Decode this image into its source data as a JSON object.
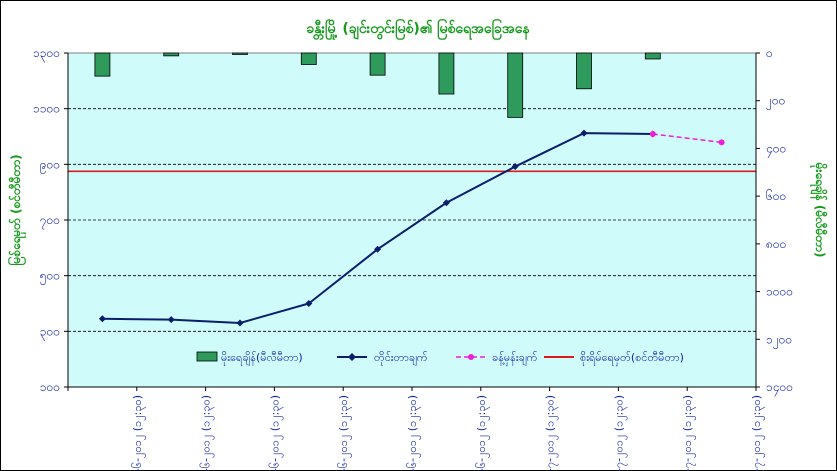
{
  "chart_data": {
    "type": "bar+line",
    "title": "ခန္တီးမြို့ (ချင်းတွင်းမြစ်)၏ မြစ်ရေအခြေအနေ",
    "ylabel_left": "မြစ်ရေမှတ် (စင်တီမီတာ)",
    "ylabel_right": "မိုးရေချိန် (မီလီမီတာ)",
    "categories": [
      "၂၅-၆-၂၀၁၂ (၁၂:၃၀)",
      "၂၆-၆-၂၀၁၂ (၁၂:၃၀)",
      "၂၇-၆-၂၀၁၂ (၁၂:၃၀)",
      "၂၈-၆-၂၀၁၂ (၁၂:၃၀)",
      "၂၉-၆-၂၀၁၂ (၁၂:၃၀)",
      "၃၀-၆-၂၀၁၂ (၁၂:၃၀)",
      "၁-၇-၂၀၁၂ (၁၂:၃၀)",
      "၂-၇-၂၀၁၂ (၁၂:၃၀)",
      "၃-၇-၂၀၁၂ (၁၂:၃၀)",
      "၄-၇-၂၀၁၂ (၁၂:၃၀)"
    ],
    "left_axis": {
      "ylim": [
        100,
        1300
      ],
      "ticks": [
        100,
        300,
        500,
        700,
        900,
        1100,
        1300
      ],
      "tick_labels": [
        "၁၀၀",
        "၃၀၀",
        "၅၀၀",
        "၇၀၀",
        "၉၀၀",
        "၁၁၀၀",
        "၁၃၀၀"
      ]
    },
    "right_axis": {
      "ylim": [
        0,
        1400
      ],
      "inverted": true,
      "ticks": [
        0,
        200,
        400,
        600,
        800,
        1000,
        1200,
        1400
      ],
      "tick_labels": [
        "၀",
        "၂၀၀",
        "၄၀၀",
        "၆၀၀",
        "၈၀၀",
        "၁၀၀၀",
        "၁၂၀၀",
        "၁၄၀၀"
      ]
    },
    "series": [
      {
        "name": "မိုးရေချိန်(မီလီမီတာ)",
        "type": "bar",
        "axis": "right",
        "color": "#2e9a5c",
        "values": [
          97,
          12,
          6,
          48,
          93,
          172,
          270,
          150,
          25,
          null
        ]
      },
      {
        "name": "တိုင်းတာချက်",
        "type": "line",
        "axis": "left",
        "color": "#0b1d6b",
        "values": [
          345,
          342,
          330,
          400,
          595,
          762,
          892,
          1012,
          1009,
          null
        ]
      },
      {
        "name": "ခန့်မှန်းချက်",
        "type": "line",
        "axis": "left",
        "color": "#ee1dd9",
        "dashed": true,
        "values": [
          null,
          null,
          null,
          null,
          null,
          null,
          null,
          null,
          1009,
          979
        ]
      },
      {
        "name": "စိုးရိမ်ရေမှတ်(စင်တီမီတာ)",
        "type": "hline",
        "axis": "left",
        "color": "#dd1a1a",
        "value": 875
      }
    ],
    "grid": true,
    "legend_position": "bottom-center",
    "colors": {
      "plot_bg": "#cffcfb",
      "axis_text": "#0b1da8",
      "title": "#139a1a"
    }
  }
}
